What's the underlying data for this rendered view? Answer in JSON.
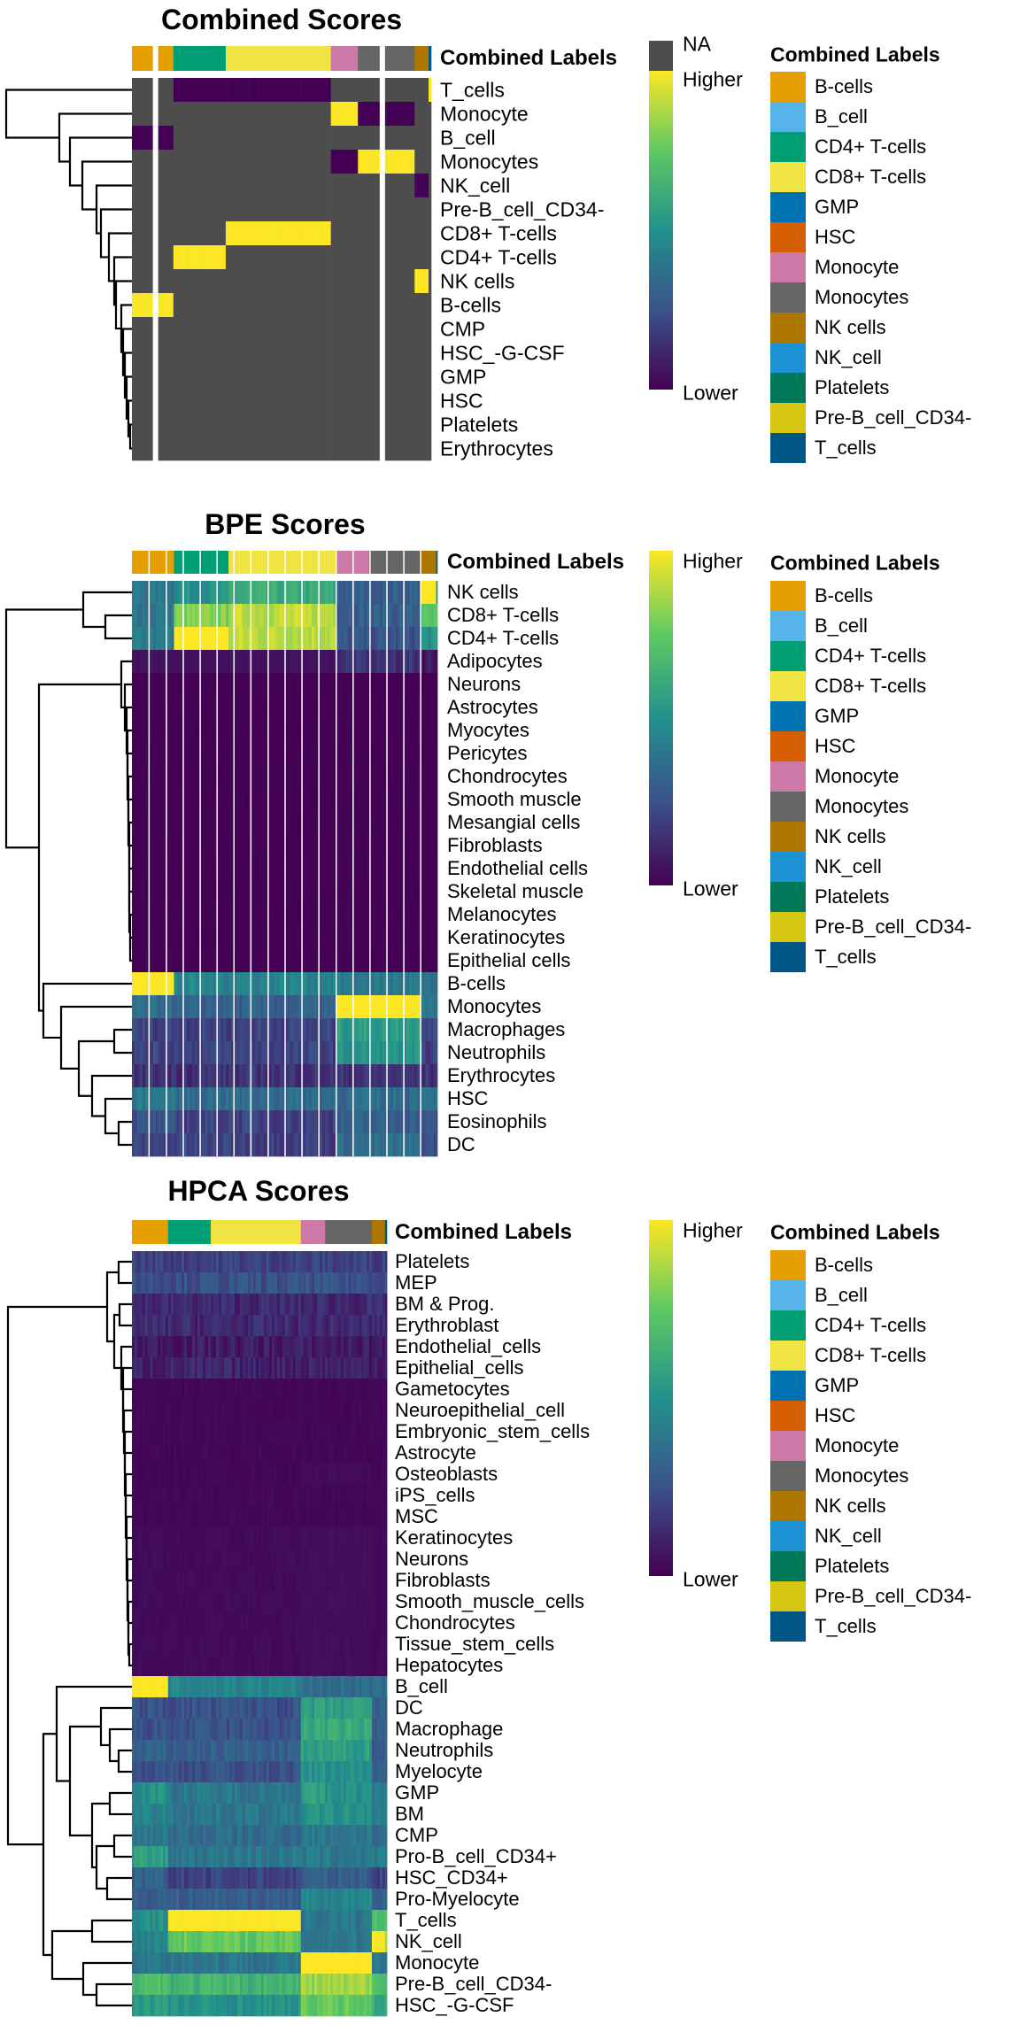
{
  "colors": {
    "na": "#4D4D4D",
    "viridis": [
      "#440154",
      "#3B528B",
      "#21918C",
      "#5EC962",
      "#FDE725"
    ],
    "labels": {
      "B-cells": "#E69F00",
      "B_cell": "#56B4E9",
      "CD4+ T-cells": "#009E73",
      "CD8+ T-cells": "#F0E442",
      "GMP": "#0072B2",
      "HSC": "#D55E00",
      "Monocyte": "#CC79A7",
      "Monocytes": "#666666",
      "NK cells": "#AD7700",
      "NK_cell": "#1C91D4",
      "Platelets": "#007756",
      "Pre-B_cell_CD34-": "#D5C711",
      "T_cells": "#005685"
    }
  },
  "legend": {
    "title": "Combined Labels",
    "items": [
      "B-cells",
      "B_cell",
      "CD4+ T-cells",
      "CD8+ T-cells",
      "GMP",
      "HSC",
      "Monocyte",
      "Monocytes",
      "NK cells",
      "NK_cell",
      "Platelets",
      "Pre-B_cell_CD34-",
      "T_cells"
    ]
  },
  "chart_data": [
    {
      "type": "heatmap",
      "title": "Combined Scores",
      "annotation_name": "Combined Labels",
      "column_groups": [
        "B-cells",
        "CD4+ T-cells",
        "CD8+ T-cells",
        "Monocyte",
        "Monocytes",
        "NK cells",
        "T_cells"
      ],
      "colorbar": {
        "na_label": "NA",
        "high_label": "Higher",
        "low_label": "Lower"
      },
      "rows": [
        "T_cells",
        "Monocyte",
        "B_cell",
        "Monocytes",
        "NK_cell",
        "Pre-B_cell_CD34-",
        "CD8+ T-cells",
        "CD4+ T-cells",
        "NK cells",
        "B-cells",
        "CMP",
        "HSC_-G-CSF",
        "GMP",
        "HSC",
        "Platelets",
        "Erythrocytes"
      ],
      "values": [
        [
          null,
          0,
          0,
          null,
          null,
          null,
          1
        ],
        [
          null,
          null,
          null,
          1,
          0,
          null,
          null
        ],
        [
          0,
          null,
          null,
          null,
          null,
          null,
          null
        ],
        [
          null,
          null,
          null,
          0,
          1,
          null,
          null
        ],
        [
          null,
          null,
          null,
          null,
          null,
          0,
          null
        ],
        [
          null,
          null,
          null,
          null,
          null,
          null,
          null
        ],
        [
          null,
          null,
          1,
          null,
          null,
          null,
          null
        ],
        [
          null,
          1,
          null,
          null,
          null,
          null,
          null
        ],
        [
          null,
          null,
          null,
          null,
          null,
          1,
          null
        ],
        [
          1,
          null,
          null,
          null,
          null,
          null,
          null
        ],
        [
          null,
          null,
          null,
          null,
          null,
          null,
          null
        ],
        [
          null,
          null,
          null,
          null,
          null,
          null,
          null
        ],
        [
          null,
          null,
          null,
          null,
          null,
          null,
          null
        ],
        [
          null,
          null,
          null,
          null,
          null,
          null,
          null
        ],
        [
          null,
          null,
          null,
          null,
          null,
          null,
          null
        ],
        [
          null,
          null,
          null,
          null,
          null,
          null,
          null
        ]
      ]
    },
    {
      "type": "heatmap",
      "title": "BPE Scores",
      "annotation_name": "Combined Labels",
      "column_groups": [
        "B-cells",
        "CD4+ T-cells",
        "CD8+ T-cells",
        "Monocyte",
        "Monocytes",
        "NK cells",
        "T_cells"
      ],
      "colorbar": {
        "high_label": "Higher",
        "low_label": "Lower"
      },
      "rows": [
        "NK cells",
        "CD8+ T-cells",
        "CD4+ T-cells",
        "Adipocytes",
        "Neurons",
        "Astrocytes",
        "Myocytes",
        "Pericytes",
        "Chondrocytes",
        "Smooth muscle",
        "Mesangial cells",
        "Fibroblasts",
        "Endothelial cells",
        "Skeletal muscle",
        "Melanocytes",
        "Keratinocytes",
        "Epithelial cells",
        "B-cells",
        "Monocytes",
        "Macrophages",
        "Neutrophils",
        "Erythrocytes",
        "HSC",
        "Eosinophils",
        "DC"
      ],
      "values": [
        [
          0.4,
          0.5,
          0.6,
          0.3,
          0.3,
          1,
          0.5
        ],
        [
          0.4,
          0.8,
          0.9,
          0.3,
          0.3,
          0.7,
          0.7
        ],
        [
          0.4,
          1,
          0.9,
          0.25,
          0.25,
          0.5,
          0.5
        ],
        [
          0.05,
          0.05,
          0.05,
          0.15,
          0.15,
          0.08,
          0.05
        ],
        [
          0,
          0,
          0,
          0,
          0,
          0,
          0
        ],
        [
          0,
          0,
          0,
          0,
          0,
          0,
          0
        ],
        [
          0,
          0,
          0,
          0,
          0,
          0,
          0
        ],
        [
          0,
          0,
          0,
          0,
          0,
          0,
          0
        ],
        [
          0,
          0,
          0,
          0,
          0,
          0,
          0
        ],
        [
          0,
          0,
          0,
          0,
          0,
          0,
          0
        ],
        [
          0,
          0,
          0,
          0,
          0,
          0,
          0
        ],
        [
          0,
          0,
          0,
          0,
          0,
          0,
          0
        ],
        [
          0,
          0,
          0,
          0,
          0,
          0,
          0
        ],
        [
          0,
          0,
          0,
          0,
          0,
          0,
          0
        ],
        [
          0,
          0,
          0,
          0,
          0,
          0,
          0
        ],
        [
          0,
          0,
          0,
          0,
          0,
          0,
          0
        ],
        [
          0,
          0,
          0,
          0,
          0,
          0,
          0
        ],
        [
          1,
          0.45,
          0.45,
          0.4,
          0.4,
          0.35,
          0.35
        ],
        [
          0.35,
          0.3,
          0.3,
          1,
          1,
          0.4,
          0.4
        ],
        [
          0.2,
          0.2,
          0.2,
          0.55,
          0.55,
          0.25,
          0.25
        ],
        [
          0.2,
          0.2,
          0.2,
          0.5,
          0.5,
          0.2,
          0.2
        ],
        [
          0.15,
          0.15,
          0.15,
          0.15,
          0.15,
          0.15,
          0.15
        ],
        [
          0.4,
          0.35,
          0.35,
          0.35,
          0.35,
          0.4,
          0.4
        ],
        [
          0.25,
          0.2,
          0.2,
          0.3,
          0.3,
          0.25,
          0.25
        ],
        [
          0.2,
          0.2,
          0.2,
          0.35,
          0.35,
          0.25,
          0.25
        ]
      ]
    },
    {
      "type": "heatmap",
      "title": "HPCA Scores",
      "annotation_name": "Combined Labels",
      "column_groups": [
        "B-cells",
        "CD4+ T-cells",
        "CD8+ T-cells",
        "Monocyte",
        "Monocytes",
        "NK cells",
        "T_cells"
      ],
      "colorbar": {
        "high_label": "Higher",
        "low_label": "Lower"
      },
      "rows": [
        "Platelets",
        "MEP",
        "BM & Prog.",
        "Erythroblast",
        "Endothelial_cells",
        "Epithelial_cells",
        "Gametocytes",
        "Neuroepithelial_cell",
        "Embryonic_stem_cells",
        "Astrocyte",
        "Osteoblasts",
        "iPS_cells",
        "MSC",
        "Keratinocytes",
        "Neurons",
        "Fibroblasts",
        "Smooth_muscle_cells",
        "Chondrocytes",
        "Tissue_stem_cells",
        "Hepatocytes",
        "B_cell",
        "DC",
        "Macrophage",
        "Neutrophils",
        "Myelocyte",
        "GMP",
        "BM",
        "CMP",
        "Pro-B_cell_CD34+",
        "HSC_CD34+",
        "Pro-Myelocyte",
        "T_cells",
        "NK_cell",
        "Monocyte",
        "Pre-B_cell_CD34-",
        "HSC_-G-CSF"
      ],
      "values": [
        [
          0.2,
          0.2,
          0.2,
          0.2,
          0.2,
          0.2,
          0.2
        ],
        [
          0.25,
          0.25,
          0.25,
          0.25,
          0.25,
          0.25,
          0.25
        ],
        [
          0.12,
          0.12,
          0.12,
          0.12,
          0.12,
          0.12,
          0.12
        ],
        [
          0.12,
          0.12,
          0.12,
          0.12,
          0.12,
          0.12,
          0.12
        ],
        [
          0.08,
          0.08,
          0.08,
          0.08,
          0.08,
          0.08,
          0.08
        ],
        [
          0.1,
          0.1,
          0.1,
          0.1,
          0.1,
          0.1,
          0.1
        ],
        [
          0.02,
          0.02,
          0.02,
          0.02,
          0.02,
          0.02,
          0.02
        ],
        [
          0.02,
          0.02,
          0.02,
          0.02,
          0.02,
          0.02,
          0.02
        ],
        [
          0.02,
          0.02,
          0.02,
          0.02,
          0.02,
          0.02,
          0.02
        ],
        [
          0.02,
          0.02,
          0.02,
          0.02,
          0.02,
          0.02,
          0.02
        ],
        [
          0.02,
          0.02,
          0.02,
          0.03,
          0.03,
          0.02,
          0.02
        ],
        [
          0.02,
          0.02,
          0.02,
          0.02,
          0.02,
          0.02,
          0.02
        ],
        [
          0.02,
          0.02,
          0.02,
          0.02,
          0.02,
          0.02,
          0.02
        ],
        [
          0.03,
          0.03,
          0.03,
          0.04,
          0.04,
          0.03,
          0.03
        ],
        [
          0.03,
          0.03,
          0.03,
          0.04,
          0.04,
          0.03,
          0.03
        ],
        [
          0.03,
          0.03,
          0.03,
          0.04,
          0.04,
          0.03,
          0.03
        ],
        [
          0.03,
          0.03,
          0.03,
          0.04,
          0.04,
          0.03,
          0.03
        ],
        [
          0.03,
          0.03,
          0.03,
          0.04,
          0.04,
          0.03,
          0.03
        ],
        [
          0.03,
          0.03,
          0.03,
          0.04,
          0.04,
          0.03,
          0.03
        ],
        [
          0.03,
          0.03,
          0.03,
          0.04,
          0.04,
          0.03,
          0.03
        ],
        [
          1,
          0.45,
          0.45,
          0.35,
          0.35,
          0.35,
          0.35
        ],
        [
          0.25,
          0.25,
          0.25,
          0.55,
          0.55,
          0.3,
          0.3
        ],
        [
          0.25,
          0.25,
          0.25,
          0.6,
          0.6,
          0.3,
          0.3
        ],
        [
          0.3,
          0.3,
          0.3,
          0.55,
          0.55,
          0.3,
          0.3
        ],
        [
          0.25,
          0.25,
          0.25,
          0.5,
          0.5,
          0.3,
          0.3
        ],
        [
          0.5,
          0.4,
          0.4,
          0.55,
          0.5,
          0.4,
          0.4
        ],
        [
          0.45,
          0.4,
          0.4,
          0.5,
          0.5,
          0.4,
          0.4
        ],
        [
          0.4,
          0.35,
          0.35,
          0.4,
          0.4,
          0.35,
          0.35
        ],
        [
          0.55,
          0.4,
          0.4,
          0.4,
          0.4,
          0.4,
          0.4
        ],
        [
          0.3,
          0.2,
          0.2,
          0.3,
          0.3,
          0.2,
          0.2
        ],
        [
          0.3,
          0.3,
          0.3,
          0.45,
          0.45,
          0.3,
          0.3
        ],
        [
          0.5,
          1,
          1,
          0.4,
          0.4,
          0.7,
          0.7
        ],
        [
          0.45,
          0.75,
          0.75,
          0.4,
          0.4,
          1,
          0.8
        ],
        [
          0.4,
          0.4,
          0.4,
          1,
          1,
          0.4,
          0.4
        ],
        [
          0.7,
          0.65,
          0.65,
          0.85,
          0.85,
          0.7,
          0.7
        ],
        [
          0.55,
          0.5,
          0.5,
          0.75,
          0.75,
          0.6,
          0.6
        ]
      ]
    }
  ]
}
